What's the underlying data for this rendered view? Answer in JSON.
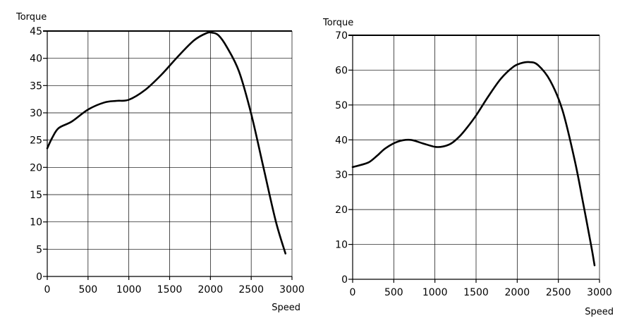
{
  "chart_data": [
    {
      "type": "line",
      "ylabel": "Torque",
      "xlabel": "Speed",
      "xlim": [
        0,
        3000
      ],
      "ylim": [
        0,
        45
      ],
      "xticks": [
        0,
        500,
        1000,
        1500,
        2000,
        2500,
        3000
      ],
      "yticks": [
        0,
        5,
        10,
        15,
        20,
        25,
        30,
        35,
        40,
        45
      ],
      "xtick_labels": [
        "0",
        "500",
        "1000",
        "1500",
        "2000",
        "2500",
        "3000"
      ],
      "ytick_labels": [
        "0",
        "5",
        "10",
        "15",
        "20",
        "25",
        "30",
        "35",
        "40",
        "45"
      ],
      "grid": true,
      "color": "#000000",
      "series": [
        {
          "x": [
            0,
            60,
            140,
            300,
            500,
            700,
            850,
            1000,
            1200,
            1400,
            1600,
            1800,
            1950,
            2020,
            2100,
            2200,
            2350,
            2500,
            2650,
            2800,
            2920
          ],
          "y": [
            23.5,
            25.4,
            27.2,
            28.4,
            30.6,
            31.9,
            32.2,
            32.4,
            34.2,
            37.0,
            40.3,
            43.3,
            44.6,
            44.7,
            44.2,
            42.1,
            37.6,
            29.8,
            20.0,
            10.2,
            4.2
          ]
        }
      ]
    },
    {
      "type": "line",
      "ylabel": "Torque",
      "xlabel": "Speed",
      "xlim": [
        0,
        3000
      ],
      "ylim": [
        0,
        70
      ],
      "xticks": [
        0,
        500,
        1000,
        1500,
        2000,
        2500,
        3000
      ],
      "yticks": [
        0,
        10,
        20,
        30,
        40,
        50,
        60,
        70
      ],
      "xtick_labels": [
        "0",
        "500",
        "1000",
        "1500",
        "2000",
        "2500",
        "3000"
      ],
      "ytick_labels": [
        "0",
        "10",
        "20",
        "30",
        "40",
        "50",
        "60",
        "70"
      ],
      "grid": true,
      "color": "#000000",
      "series": [
        {
          "x": [
            0,
            100,
            200,
            300,
            400,
            550,
            700,
            850,
            1000,
            1100,
            1200,
            1300,
            1400,
            1500,
            1650,
            1800,
            1950,
            2050,
            2150,
            2250,
            2400,
            2550,
            2700,
            2800,
            2900,
            2940
          ],
          "y": [
            32.2,
            32.8,
            33.6,
            35.5,
            37.6,
            39.5,
            40.0,
            39.0,
            38.0,
            38.1,
            39.0,
            41.0,
            43.8,
            47.0,
            52.5,
            57.5,
            60.9,
            62.0,
            62.3,
            61.5,
            57.0,
            48.5,
            34.0,
            22.0,
            9.5,
            4.0
          ]
        }
      ]
    }
  ]
}
